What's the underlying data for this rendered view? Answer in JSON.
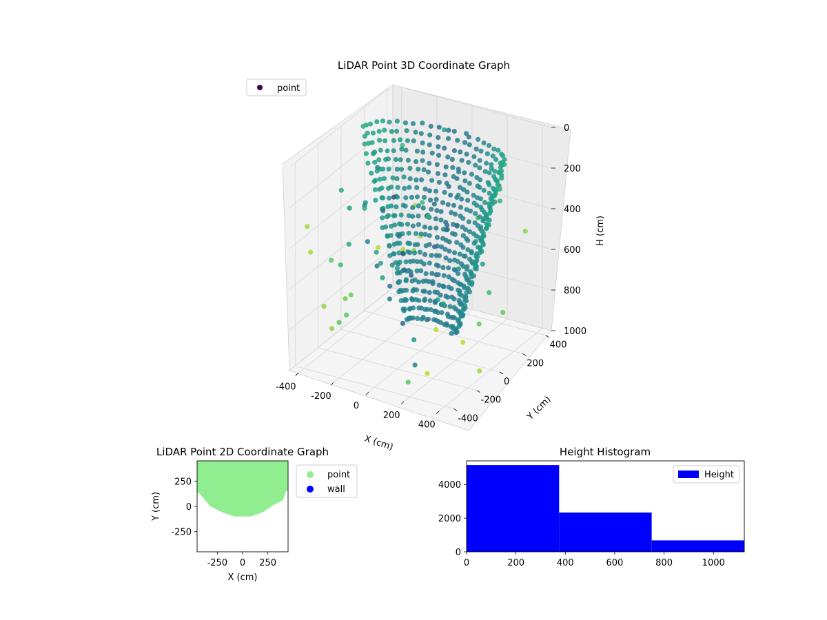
{
  "chart_data": [
    {
      "type": "scatter",
      "projection": "3d",
      "title": "LiDAR Point 3D Coordinate Graph",
      "xlabel": "X (cm)",
      "ylabel": "Y (cm)",
      "zlabel": "H (cm)",
      "xlim": [
        -450,
        450
      ],
      "ylim": [
        -450,
        450
      ],
      "zlim": [
        0,
        1000
      ],
      "x_ticks": [
        "-400",
        "-200",
        "0",
        "200",
        "400"
      ],
      "y_ticks": [
        "-400",
        "-200",
        "0",
        "200",
        "400"
      ],
      "z_ticks": [
        "0",
        "200",
        "400",
        "600",
        "800",
        "1000"
      ],
      "colormap": "viridis",
      "legend": {
        "placement": "upper-left",
        "entries": [
          "point"
        ],
        "marker_color": "#440154"
      },
      "series": [
        {
          "name": "point",
          "description_shape": "bowl-shaped point cloud, dense near center"
        }
      ]
    },
    {
      "type": "scatter",
      "title": "LiDAR Point 2D Coordinate Graph",
      "xlabel": "X (cm)",
      "ylabel": "Y (cm)",
      "xlim": [
        -450,
        450
      ],
      "ylim": [
        -450,
        450
      ],
      "x_ticks": [
        "-250",
        "0",
        "250"
      ],
      "y_ticks": [
        "250",
        "0",
        "-250"
      ],
      "legend": {
        "placement": "outside-right",
        "entries": [
          {
            "label": "point",
            "color": "#90ee90"
          },
          {
            "label": "wall",
            "color": "#0000ff"
          }
        ]
      },
      "series": [
        {
          "name": "point",
          "color": "#90ee90"
        },
        {
          "name": "wall",
          "color": "#0000ff"
        }
      ]
    },
    {
      "type": "bar",
      "subtype": "histogram",
      "title": "Height Histogram",
      "xlim": [
        0,
        1125
      ],
      "ylim": [
        0,
        5400
      ],
      "x_ticks": [
        "0",
        "200",
        "400",
        "600",
        "800",
        "1000"
      ],
      "y_ticks": [
        "0",
        "2000",
        "4000"
      ],
      "legend": {
        "placement": "upper-right",
        "entries": [
          {
            "label": "Height",
            "color": "#0000ff"
          }
        ]
      },
      "bins": [
        {
          "start": 0,
          "end": 375,
          "count": 5150
        },
        {
          "start": 375,
          "end": 750,
          "count": 2330
        },
        {
          "start": 750,
          "end": 1125,
          "count": 680
        }
      ]
    }
  ]
}
